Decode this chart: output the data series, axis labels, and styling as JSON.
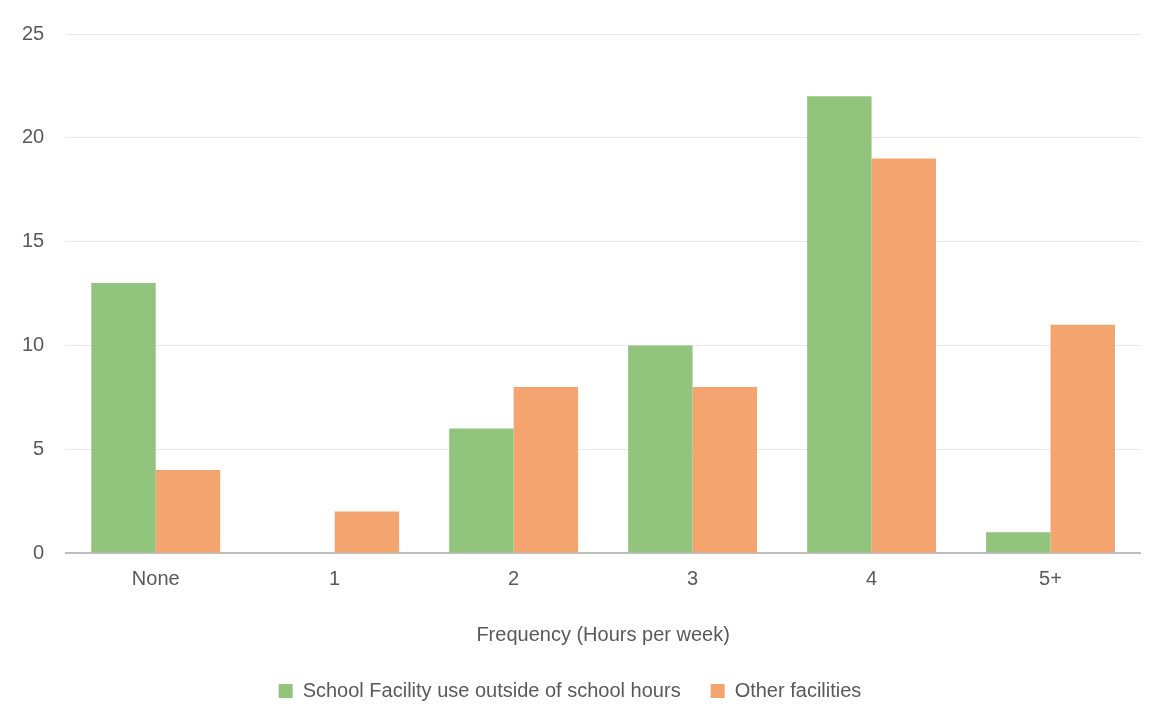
{
  "chart_data": {
    "type": "bar",
    "xlabel": "Frequency (Hours per week)",
    "categories": [
      "None",
      "1",
      "2",
      "3",
      "4",
      "5+"
    ],
    "series": [
      {
        "name": "School Facility use outside of school hours",
        "color": "#93c47d",
        "values": [
          13,
          0,
          6,
          10,
          22,
          1
        ]
      },
      {
        "name": "Other facilities",
        "color": "#f4a46f",
        "values": [
          4,
          2,
          8,
          8,
          19,
          11
        ]
      }
    ],
    "ylim": [
      0,
      25
    ],
    "yticks": [
      0,
      5,
      10,
      15,
      20,
      25
    ],
    "grid": "y",
    "legend": "bottom"
  }
}
